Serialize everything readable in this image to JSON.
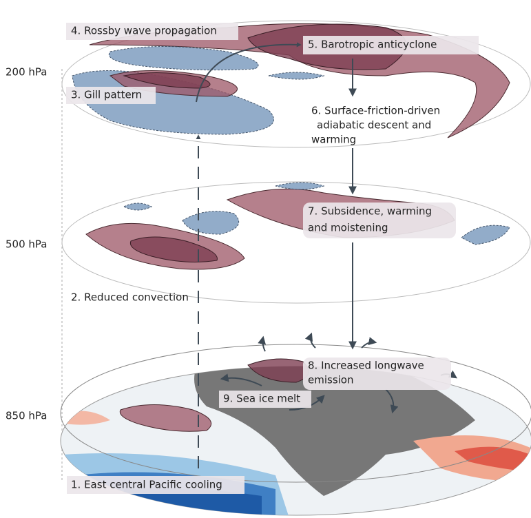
{
  "levels": [
    {
      "label": "200 hPa"
    },
    {
      "label": "500 hPa"
    },
    {
      "label": "850 hPa"
    }
  ],
  "steps": [
    {
      "lines": [
        "1. East central Pacific cooling"
      ]
    },
    {
      "lines": [
        "2. Reduced convection"
      ]
    },
    {
      "lines": [
        "3. Gill pattern"
      ]
    },
    {
      "lines": [
        "4. Rossby wave propagation"
      ]
    },
    {
      "lines": [
        "5. Barotropic anticyclone"
      ]
    },
    {
      "lines": [
        "6. Surface-friction-driven",
        "adiabatic descent and",
        "warming"
      ]
    },
    {
      "lines": [
        "7. Subsidence, warming",
        "and moistening"
      ]
    },
    {
      "lines": [
        "8. Increased longwave",
        "emission"
      ]
    },
    {
      "lines": [
        "9. Sea ice melt"
      ]
    }
  ]
}
